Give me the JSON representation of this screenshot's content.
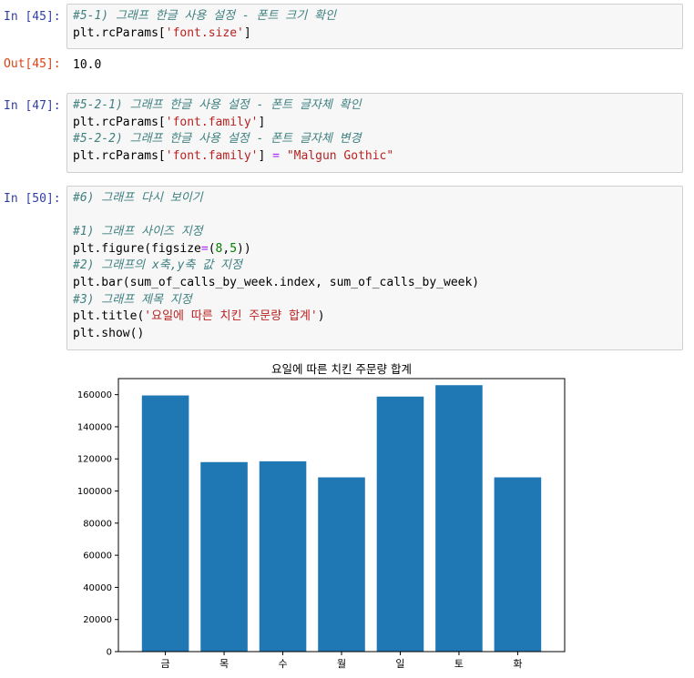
{
  "cells": [
    {
      "prompt": "In [45]:",
      "lines": [
        {
          "parts": [
            {
              "cls": "cm",
              "text": "#5-1) 그래프 한글 사용 설정 - 폰트 크기 확인"
            }
          ]
        },
        {
          "parts": [
            {
              "cls": "",
              "text": "plt.rcParams["
            },
            {
              "cls": "str",
              "text": "'font.size'"
            },
            {
              "cls": "",
              "text": "]"
            }
          ]
        }
      ]
    },
    {
      "prompt": "In [47]:",
      "lines": [
        {
          "parts": [
            {
              "cls": "cm",
              "text": "#5-2-1) 그래프 한글 사용 설정 - 폰트 글자체 확인"
            }
          ]
        },
        {
          "parts": [
            {
              "cls": "",
              "text": "plt.rcParams["
            },
            {
              "cls": "str",
              "text": "'font.family'"
            },
            {
              "cls": "",
              "text": "]"
            }
          ]
        },
        {
          "parts": [
            {
              "cls": "cm",
              "text": "#5-2-2) 그래프 한글 사용 설정 - 폰트 글자체 변경"
            }
          ]
        },
        {
          "parts": [
            {
              "cls": "",
              "text": "plt.rcParams["
            },
            {
              "cls": "str",
              "text": "'font.family'"
            },
            {
              "cls": "",
              "text": "] "
            },
            {
              "cls": "op",
              "text": "="
            },
            {
              "cls": "",
              "text": " "
            },
            {
              "cls": "str",
              "text": "\"Malgun Gothic\""
            }
          ]
        }
      ]
    },
    {
      "prompt": "In [50]:",
      "lines": [
        {
          "parts": [
            {
              "cls": "cm",
              "text": "#6) 그래프 다시 보이기"
            }
          ]
        },
        {
          "parts": [
            {
              "cls": "",
              "text": ""
            }
          ]
        },
        {
          "parts": [
            {
              "cls": "cm",
              "text": "#1) 그래프 사이즈 지정"
            }
          ]
        },
        {
          "parts": [
            {
              "cls": "",
              "text": "plt.figure(figsize"
            },
            {
              "cls": "op",
              "text": "="
            },
            {
              "cls": "",
              "text": "("
            },
            {
              "cls": "num",
              "text": "8"
            },
            {
              "cls": "",
              "text": ","
            },
            {
              "cls": "num",
              "text": "5"
            },
            {
              "cls": "",
              "text": "))"
            }
          ]
        },
        {
          "parts": [
            {
              "cls": "cm",
              "text": "#2) 그래프의 x축,y축 값 지정"
            }
          ]
        },
        {
          "parts": [
            {
              "cls": "",
              "text": "plt.bar(sum_of_calls_by_week.index, sum_of_calls_by_week)"
            }
          ]
        },
        {
          "parts": [
            {
              "cls": "cm",
              "text": "#3) 그래프 제목 지정"
            }
          ]
        },
        {
          "parts": [
            {
              "cls": "",
              "text": "plt.title("
            },
            {
              "cls": "str",
              "text": "'요일에 따른 치킨 주문량 합계'"
            },
            {
              "cls": "",
              "text": ")"
            }
          ]
        },
        {
          "parts": [
            {
              "cls": "",
              "text": "plt.show()"
            }
          ]
        }
      ]
    }
  ],
  "output45": {
    "prompt": "Out[45]:",
    "value": "10.0"
  },
  "chart_data": {
    "type": "bar",
    "title": "요일에 따른 치킨 주문량 합계",
    "categories": [
      "금",
      "목",
      "수",
      "월",
      "일",
      "토",
      "화"
    ],
    "values": [
      159500,
      118000,
      118500,
      108500,
      158800,
      165900,
      108500
    ],
    "ylim": [
      0,
      170000
    ],
    "yticks": [
      0,
      20000,
      40000,
      60000,
      80000,
      100000,
      120000,
      140000,
      160000
    ],
    "bar_color": "#1f77b4",
    "grid": false
  }
}
